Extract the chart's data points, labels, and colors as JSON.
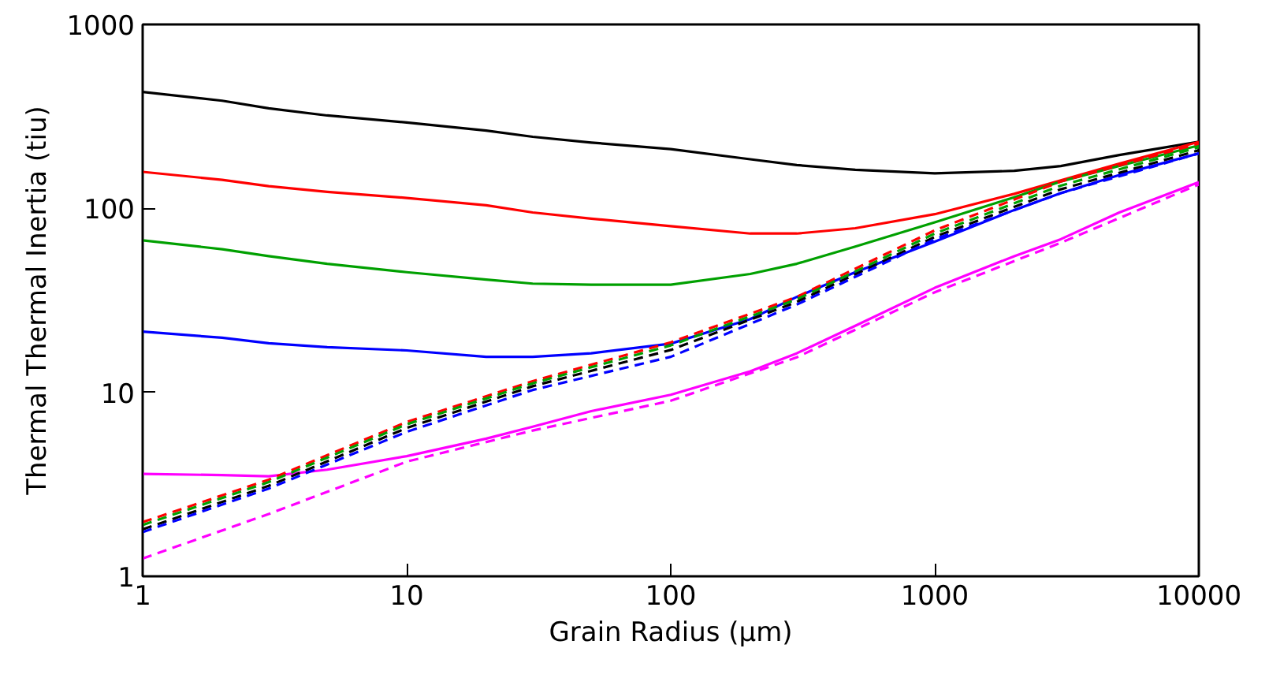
{
  "chart_data": {
    "type": "line",
    "xlabel": "Grain Radius (μm)",
    "ylabel": "Thermal Thermal Inertia (tiu)",
    "log": "xy",
    "xlim": [
      1,
      10000
    ],
    "ylim": [
      1,
      1000
    ],
    "xticks": [
      1,
      10,
      100,
      1000,
      10000
    ],
    "yticks": [
      1,
      10,
      100,
      1000
    ],
    "grid": false,
    "marker": "none",
    "x": [
      1,
      2,
      3,
      5,
      10,
      20,
      30,
      50,
      100,
      200,
      300,
      500,
      1000,
      2000,
      3000,
      5000,
      10000
    ],
    "series": [
      {
        "color": "#000000",
        "line_style": "solid",
        "values": [
          430,
          385,
          350,
          320,
          293,
          265,
          245,
          228,
          210,
          185,
          172,
          162,
          155,
          160,
          170,
          195,
          230
        ]
      },
      {
        "color": "#ff0000",
        "line_style": "solid",
        "values": [
          158,
          143,
          132,
          123,
          114,
          104,
          95,
          88,
          80,
          73,
          73,
          78,
          93,
          120,
          142,
          175,
          230
        ]
      },
      {
        "color": "#00a000",
        "line_style": "solid",
        "values": [
          67,
          60,
          55,
          50,
          45,
          41,
          39,
          38.5,
          38.5,
          44,
          50,
          62,
          84,
          115,
          140,
          170,
          220
        ]
      },
      {
        "color": "#0000ff",
        "line_style": "solid",
        "values": [
          21.4,
          19.8,
          18.5,
          17.6,
          16.9,
          15.6,
          15.6,
          16.3,
          18.4,
          25,
          33,
          45,
          66,
          98,
          121,
          152,
          199
        ]
      },
      {
        "color": "#ff00ff",
        "line_style": "solid",
        "values": [
          3.6,
          3.55,
          3.5,
          3.8,
          4.5,
          5.6,
          6.5,
          7.9,
          9.7,
          13,
          16.3,
          23,
          37,
          55,
          68,
          95,
          139
        ]
      },
      {
        "color": "#ff0000",
        "line_style": "dashed",
        "x": [
          1,
          3,
          10,
          30,
          100,
          300,
          1000,
          3000,
          10000
        ],
        "values": [
          1.97,
          3.35,
          6.9,
          11.5,
          18.7,
          33,
          76,
          140,
          225
        ]
      },
      {
        "color": "#00a000",
        "line_style": "dashed",
        "x": [
          1,
          3,
          10,
          30,
          100,
          300,
          1000,
          3000,
          10000
        ],
        "values": [
          1.9,
          3.25,
          6.7,
          11.2,
          18,
          32,
          73,
          133,
          215
        ]
      },
      {
        "color": "#000000",
        "line_style": "dashed",
        "x": [
          1,
          3,
          10,
          30,
          100,
          300,
          1000,
          3000,
          10000
        ],
        "values": [
          1.8,
          3.1,
          6.4,
          10.8,
          17,
          31,
          70,
          127,
          207
        ]
      },
      {
        "color": "#0000ff",
        "line_style": "dashed",
        "x": [
          1,
          3,
          10,
          30,
          100,
          300,
          1000,
          3000,
          10000
        ],
        "values": [
          1.74,
          3.0,
          6.1,
          10.3,
          15.6,
          30,
          68,
          121,
          199
        ]
      },
      {
        "color": "#ff00ff",
        "line_style": "dashed",
        "x": [
          1,
          3,
          10,
          30,
          100,
          300,
          1000,
          3000,
          10000
        ],
        "values": [
          1.25,
          2.18,
          4.2,
          6.2,
          9,
          15.5,
          35,
          65,
          135
        ]
      }
    ]
  }
}
